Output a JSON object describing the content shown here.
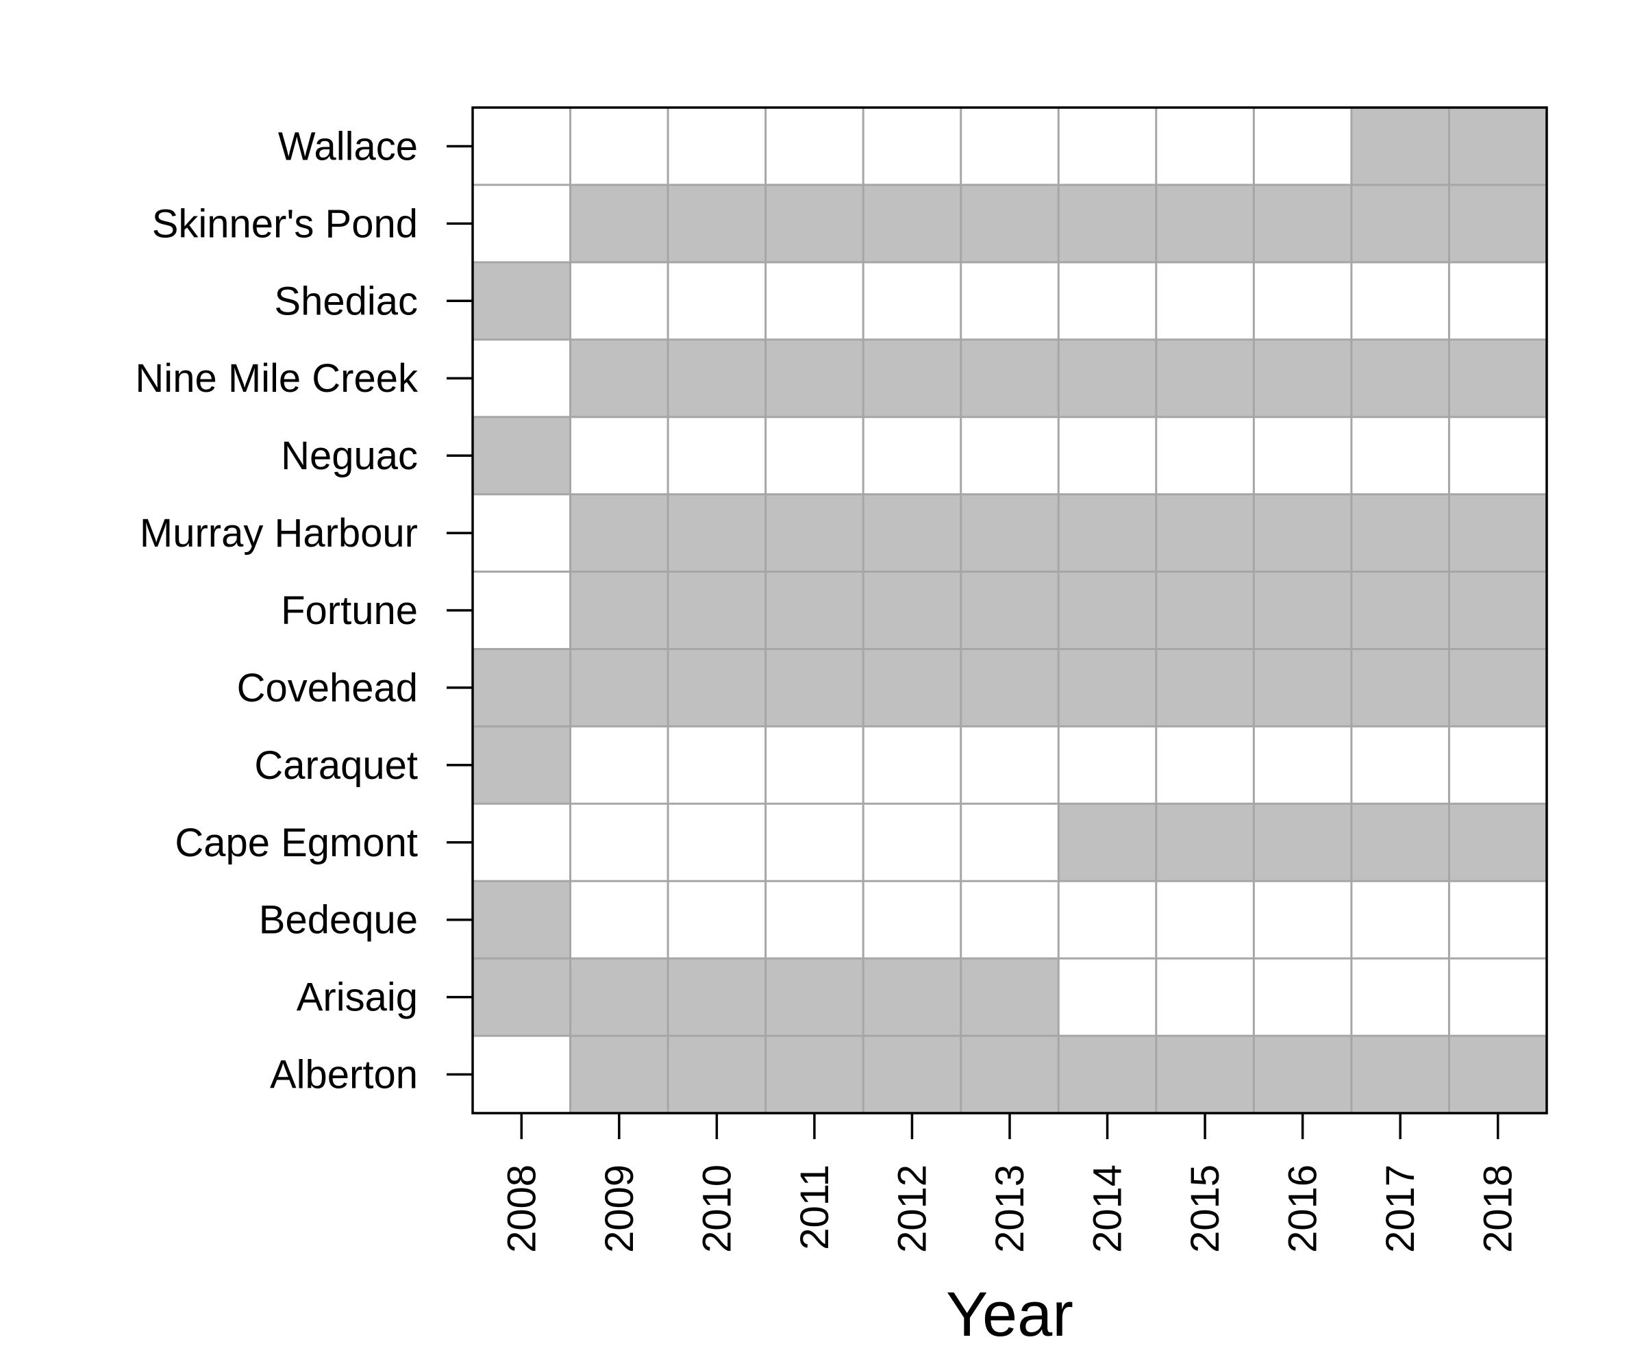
{
  "chart_data": {
    "type": "heatmap",
    "xlabel": "Year",
    "ylabel": "",
    "x": [
      "2008",
      "2009",
      "2010",
      "2011",
      "2012",
      "2013",
      "2014",
      "2015",
      "2016",
      "2017",
      "2018"
    ],
    "y": [
      "Wallace",
      "Skinner's Pond",
      "Shediac",
      "Nine Mile Creek",
      "Neguac",
      "Murray Harbour",
      "Fortune",
      "Covehead",
      "Caraquet",
      "Cape Egmont",
      "Bedeque",
      "Arisaig",
      "Alberton"
    ],
    "matrix": [
      [
        0,
        0,
        0,
        0,
        0,
        0,
        0,
        0,
        0,
        1,
        1
      ],
      [
        0,
        1,
        1,
        1,
        1,
        1,
        1,
        1,
        1,
        1,
        1
      ],
      [
        1,
        0,
        0,
        0,
        0,
        0,
        0,
        0,
        0,
        0,
        0
      ],
      [
        0,
        1,
        1,
        1,
        1,
        1,
        1,
        1,
        1,
        1,
        1
      ],
      [
        1,
        0,
        0,
        0,
        0,
        0,
        0,
        0,
        0,
        0,
        0
      ],
      [
        0,
        1,
        1,
        1,
        1,
        1,
        1,
        1,
        1,
        1,
        1
      ],
      [
        0,
        1,
        1,
        1,
        1,
        1,
        1,
        1,
        1,
        1,
        1
      ],
      [
        1,
        1,
        1,
        1,
        1,
        1,
        1,
        1,
        1,
        1,
        1
      ],
      [
        1,
        0,
        0,
        0,
        0,
        0,
        0,
        0,
        0,
        0,
        0
      ],
      [
        0,
        0,
        0,
        0,
        0,
        0,
        1,
        1,
        1,
        1,
        1
      ],
      [
        1,
        0,
        0,
        0,
        0,
        0,
        0,
        0,
        0,
        0,
        0
      ],
      [
        1,
        1,
        1,
        1,
        1,
        1,
        0,
        0,
        0,
        0,
        0
      ],
      [
        0,
        1,
        1,
        1,
        1,
        1,
        1,
        1,
        1,
        1,
        1
      ]
    ],
    "colors": {
      "filled": "#c0c0c0",
      "empty": "#ffffff",
      "gridline": "#a6a6a6",
      "frame": "#000000"
    },
    "grid": true,
    "legend": "none"
  }
}
